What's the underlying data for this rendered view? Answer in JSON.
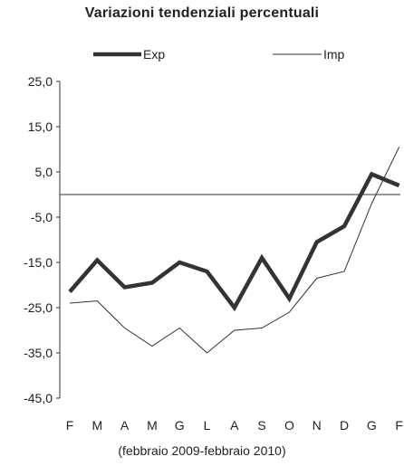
{
  "chart_data": {
    "type": "line",
    "title": "Variazioni tendenziali percentuali",
    "categories": [
      "F",
      "M",
      "A",
      "M",
      "G",
      "L",
      "A",
      "S",
      "O",
      "N",
      "D",
      "G",
      "F"
    ],
    "series": [
      {
        "name": "Exp",
        "values": [
          -21.5,
          -14.5,
          -20.5,
          -19.5,
          -15.0,
          -17.0,
          -25.0,
          -14.0,
          -23.0,
          -10.5,
          -7.0,
          4.5,
          2.0
        ]
      },
      {
        "name": "Imp",
        "values": [
          -24.0,
          -23.5,
          -29.5,
          -33.5,
          -29.5,
          -35.0,
          -30.0,
          -29.5,
          -26.0,
          -18.5,
          -17.0,
          -2.0,
          10.5
        ]
      }
    ],
    "y_ticks": [
      "25,0",
      "15,0",
      "5,0",
      "-5,0",
      "-15,0",
      "-25,0",
      "-35,0",
      "-45,0"
    ],
    "ylim": [
      -45,
      25
    ],
    "note": "(febbraio 2009-febbraio 2010)"
  }
}
